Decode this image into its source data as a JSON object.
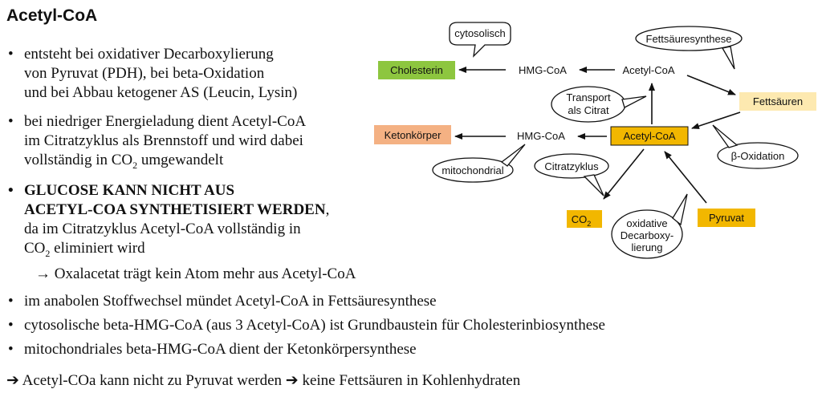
{
  "title": "Acetyl-CoA",
  "bullets": {
    "b1": [
      "entsteht bei oxidativer Decarboxylierung",
      "von Pyruvat (PDH), bei beta-Oxidation",
      "und bei Abbau ketogener AS (Leucin, Lysin)"
    ],
    "b2": [
      "bei niedriger Energieladung dient Acetyl-CoA",
      "im Citratzyklus als Brennstoff und wird dabei",
      "vollständig in CO",
      "2",
      " umgewandelt"
    ],
    "b3": [
      "GLUCOSE KANN NICHT AUS",
      "ACETYL-COA SYNTHETISIERT WERDEN",
      ",",
      "da im Citratzyklus Acetyl-CoA vollständig in",
      "CO",
      "2",
      " eliminiert wird"
    ],
    "arrow_line": "→ Oxalacetat trägt kein Atom mehr aus Acetyl-CoA",
    "b4": "im anabolen Stoffwechsel mündet Acetyl-CoA in Fettsäuresynthese",
    "b5": "cytosolische beta-HMG-CoA (aus 3 Acetyl-CoA) ist Grundbaustein für Cholesterinbiosynthese",
    "b6": "mitochondriales beta-HMG-CoA dient der Ketonkörpersynthese"
  },
  "footer": "➔ Acetyl-COa kann nicht zu Pyruvat werden ➔ keine Fettsäuren in Kohlenhydraten",
  "diagram": {
    "cholesterin": "Cholesterin",
    "hmg_top": "HMG-CoA",
    "acetyl_top": "Acetyl-CoA",
    "fettsaeuren": "Fettsäuren",
    "ketonkoerper": "Ketonkörper",
    "hmg_bottom": "HMG-CoA",
    "acetyl_main": "Acetyl-CoA",
    "co2": "CO",
    "co2_sub": "2",
    "pyruvat": "Pyruvat",
    "cytosolisch": "cytosolisch",
    "fettsaeuresynthese": "Fettsäuresynthese",
    "transport_1": "Transport",
    "transport_2": "als Citrat",
    "beta_oxidation": "β-Oxidation",
    "mitochondrial": "mitochondrial",
    "citratzyklus": "Citratzyklus",
    "decarb_1": "oxidative",
    "decarb_2": "Decarboxy-",
    "decarb_3": "lierung"
  },
  "colors": {
    "green": "#8dc63f",
    "peach": "#f4b183",
    "cream": "#fde9b0",
    "orange": "#f2b700"
  }
}
